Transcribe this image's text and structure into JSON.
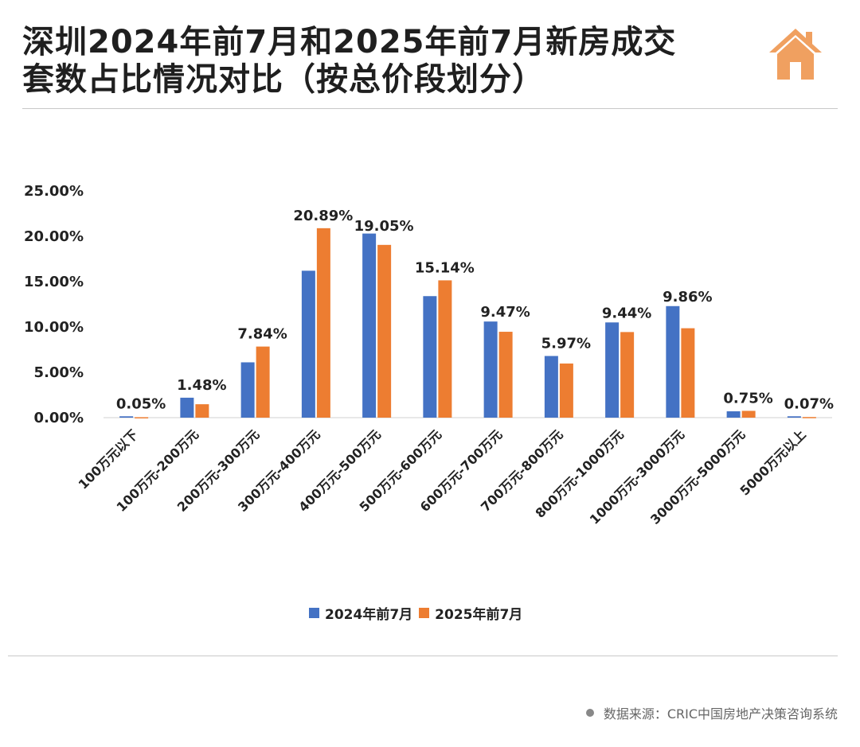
{
  "header": {
    "title_line1": "深圳2024年前7月和2025年前7月新房成交",
    "title_line2": "套数占比情况对比（按总价段划分）",
    "icon": "house-icon"
  },
  "colors": {
    "series_2024": "#4472c4",
    "series_2025": "#ed7d31",
    "icon": "#f0a060"
  },
  "chart_data": {
    "type": "bar",
    "title": "",
    "xlabel": "",
    "ylabel": "",
    "ylim": [
      0,
      25
    ],
    "y_ticks": [
      "0.00%",
      "5.00%",
      "10.00%",
      "15.00%",
      "20.00%",
      "25.00%"
    ],
    "grid": false,
    "legend_position": "bottom",
    "categories": [
      "100万元以下",
      "100万元-200万元",
      "200万元-300万元",
      "300万元-400万元",
      "400万元-500万元",
      "500万元-600万元",
      "600万元-700万元",
      "700万元-800万元",
      "800万元-1000万元",
      "1000万元-3000万元",
      "3000万元-5000万元",
      "5000万元以上"
    ],
    "series": [
      {
        "name": "2024年前7月",
        "values": [
          0.15,
          2.2,
          6.1,
          16.2,
          20.3,
          13.4,
          10.6,
          6.8,
          10.5,
          12.3,
          0.7,
          0.15
        ]
      },
      {
        "name": "2025年前7月",
        "values": [
          0.05,
          1.48,
          7.84,
          20.89,
          19.05,
          15.14,
          9.47,
          5.97,
          9.44,
          9.86,
          0.75,
          0.07
        ]
      }
    ],
    "data_labels": [
      "0.05%",
      "1.48%",
      "7.84%",
      "20.89%",
      "19.05%",
      "15.14%",
      "9.47%",
      "5.97%",
      "9.44%",
      "9.86%",
      "0.75%",
      "0.07%"
    ]
  },
  "footer": {
    "source": "数据来源：CRIC中国房地产决策咨询系统"
  }
}
